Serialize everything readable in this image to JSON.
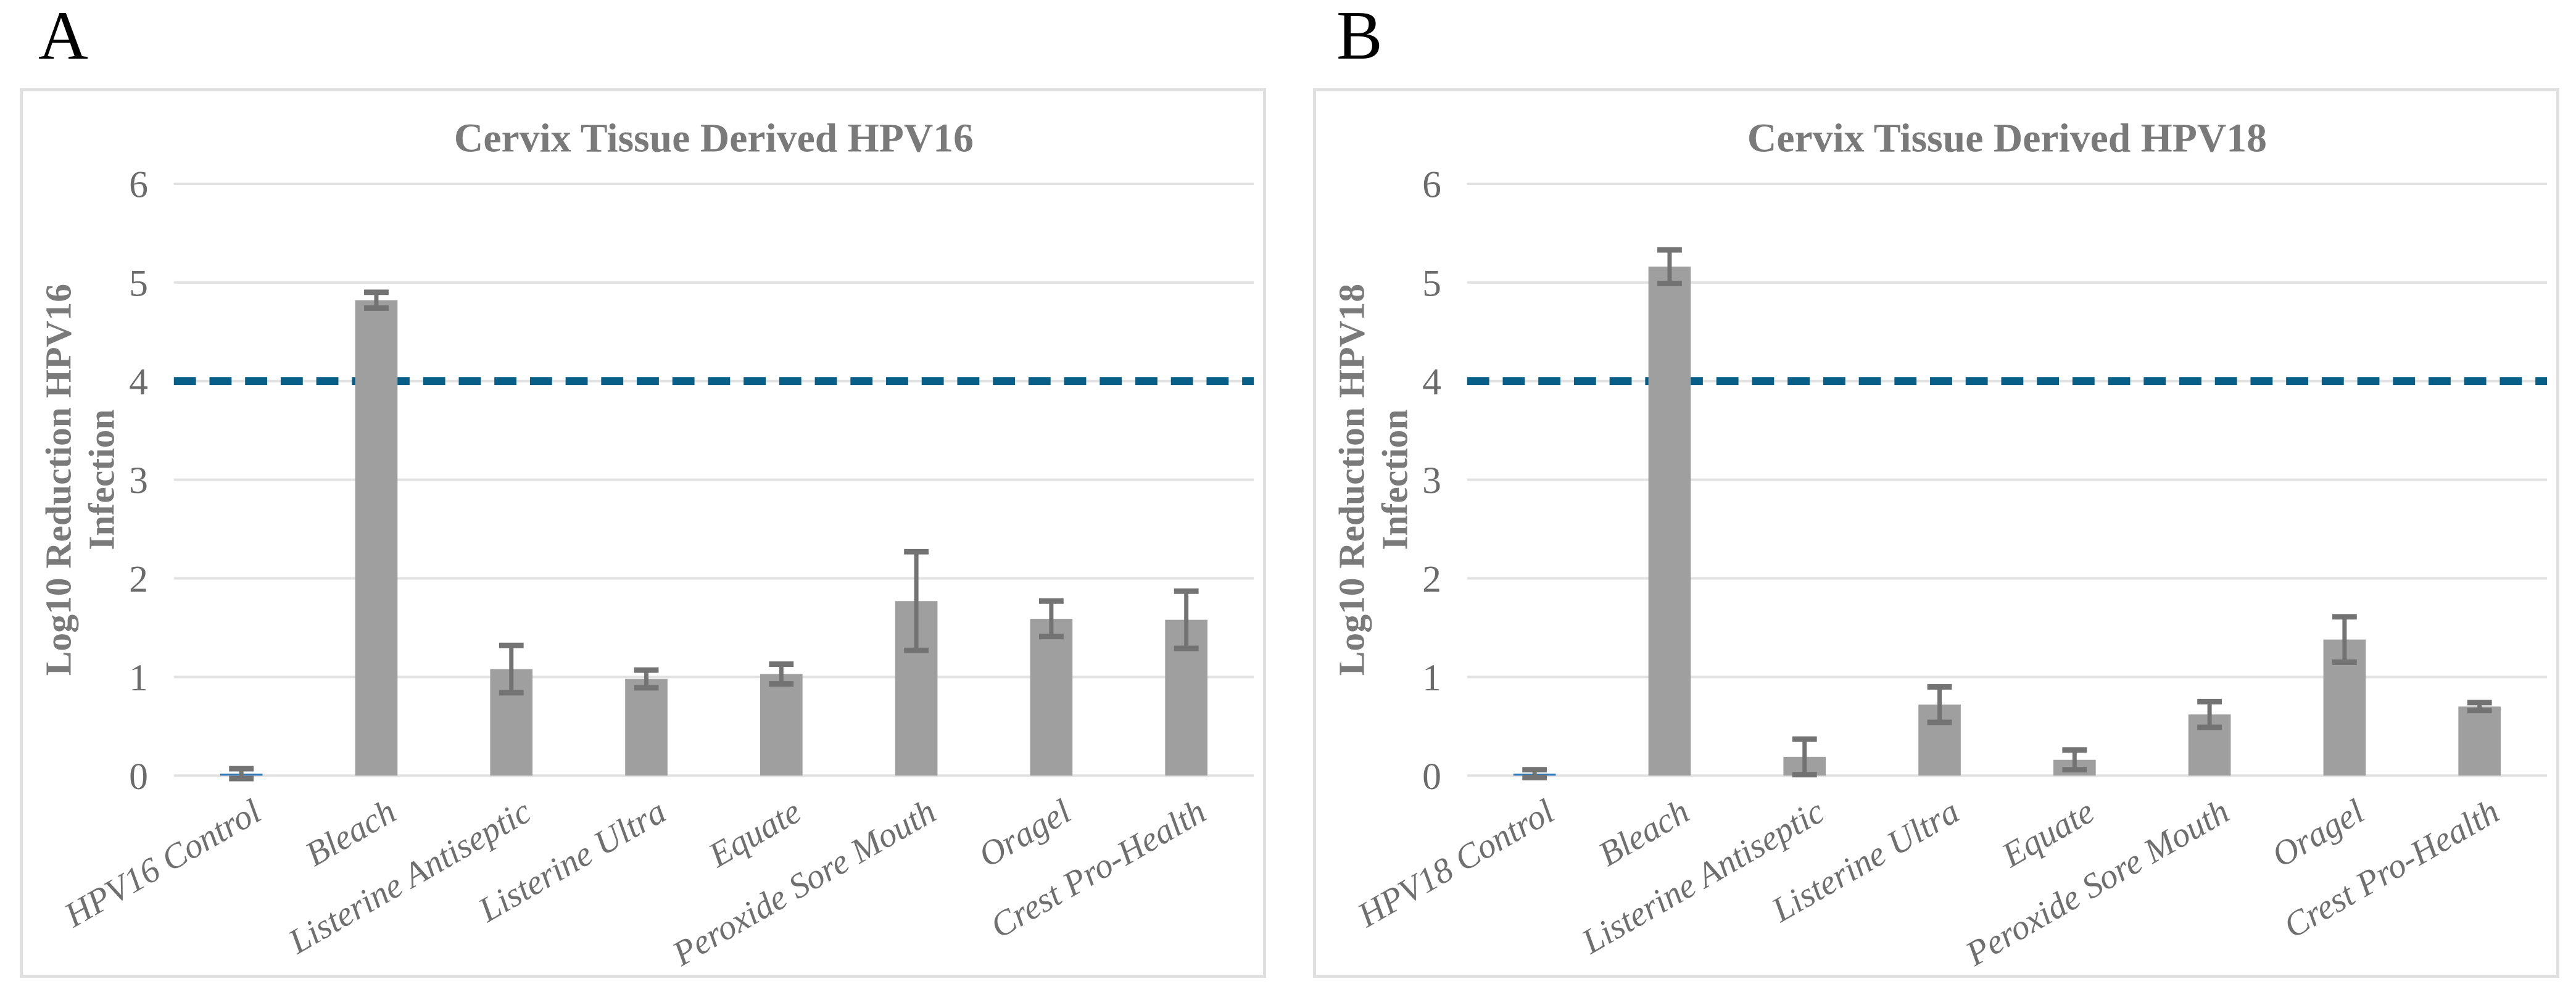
{
  "figure": {
    "panel_a_letter": "A",
    "panel_b_letter": "B"
  },
  "colors": {
    "bar": "#9f9f9f",
    "control_bar": "#2e75b6",
    "error": "#737373",
    "ref_line": "#075f88",
    "gridline": "#e2e2e2",
    "panel_border": "#e0e0e0",
    "title_text": "#7a7a7a",
    "axis_title_text": "#7a7a7a",
    "tick_text": "#6b6b6b",
    "category_text": "#6f6f6f",
    "panel_letter": "#000000"
  },
  "chart_data": [
    {
      "type": "bar",
      "panel": "A",
      "title": "Cervix Tissue Derived HPV16",
      "ylabel_line1": "Log10 Reduction HPV16",
      "ylabel_line2": "Infection",
      "categories": [
        "HPV16 Control",
        "Bleach",
        "Listerine Antiseptic",
        "Listerine Ultra",
        "Equate",
        "Peroxide Sore Mouth",
        "Oragel",
        "Crest Pro-Health"
      ],
      "values": [
        0.02,
        4.82,
        1.08,
        0.98,
        1.03,
        1.77,
        1.59,
        1.58
      ],
      "errors": [
        0.05,
        0.08,
        0.24,
        0.09,
        0.1,
        0.5,
        0.18,
        0.29
      ],
      "control_index": 0,
      "yticks": [
        0,
        1,
        2,
        3,
        4,
        5,
        6
      ],
      "ylim": [
        0,
        6
      ],
      "ref_line": 4,
      "grid": true,
      "legend": null
    },
    {
      "type": "bar",
      "panel": "B",
      "title": "Cervix Tissue Derived HPV18",
      "ylabel_line1": "Log10 Reduction HPV18",
      "ylabel_line2": "Infection",
      "categories": [
        "HPV18 Control",
        "Bleach",
        "Listerine Antiseptic",
        "Listerine Ultra",
        "Equate",
        "Peroxide Sore Mouth",
        "Oragel",
        "Crest Pro-Health"
      ],
      "values": [
        0.02,
        5.16,
        0.19,
        0.72,
        0.16,
        0.62,
        1.38,
        0.7
      ],
      "errors": [
        0.04,
        0.17,
        0.18,
        0.18,
        0.1,
        0.13,
        0.23,
        0.04
      ],
      "control_index": 0,
      "yticks": [
        0,
        1,
        2,
        3,
        4,
        5,
        6
      ],
      "ylim": [
        0,
        6
      ],
      "ref_line": 4,
      "grid": true,
      "legend": null
    }
  ]
}
